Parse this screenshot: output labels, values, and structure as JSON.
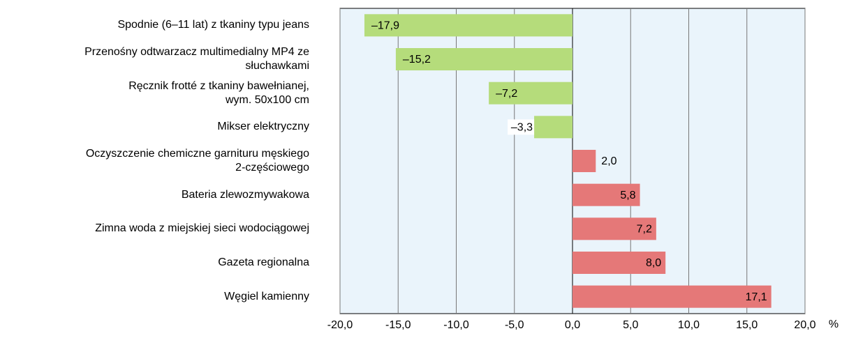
{
  "chart_data": {
    "type": "barh",
    "categories": [
      "Spodnie (6–11 lat) z tkaniny typu jeans",
      "Przenośny odtwarzacz multimedialny MP4 ze\nsłuchawkami",
      "Ręcznik frotté z tkaniny bawełnianej,\nwym. 50x100 cm",
      "Mikser elektryczny",
      "Oczyszczenie chemiczne garnituru męskiego\n2-częściowego",
      "Bateria zlewozmywakowa",
      "Zimna woda z miejskiej sieci wodociągowej",
      "Gazeta regionalna",
      "Węgiel kamienny"
    ],
    "values": [
      -17.9,
      -15.2,
      -7.2,
      -3.3,
      2.0,
      5.8,
      7.2,
      8.0,
      17.1
    ],
    "value_labels": [
      "–17,9",
      "–15,2",
      "–7,2",
      "–3,3",
      "2,0",
      "5,8",
      "7,2",
      "8,0",
      "17,1"
    ],
    "color_negative": "#b5dc7b",
    "color_positive": "#e57878",
    "xlabel": "%",
    "xlim": [
      -20,
      20
    ],
    "xticks": [
      {
        "value": -20,
        "label": "-20,0"
      },
      {
        "value": -15,
        "label": "-15,0"
      },
      {
        "value": -10,
        "label": "-10,0"
      },
      {
        "value": -5,
        "label": "-5,0"
      },
      {
        "value": 0,
        "label": "0,0"
      },
      {
        "value": 5,
        "label": "5,0"
      },
      {
        "value": 10,
        "label": "10,0"
      },
      {
        "value": 15,
        "label": "15,0"
      },
      {
        "value": 20,
        "label": "20,0"
      }
    ],
    "grid": true
  }
}
